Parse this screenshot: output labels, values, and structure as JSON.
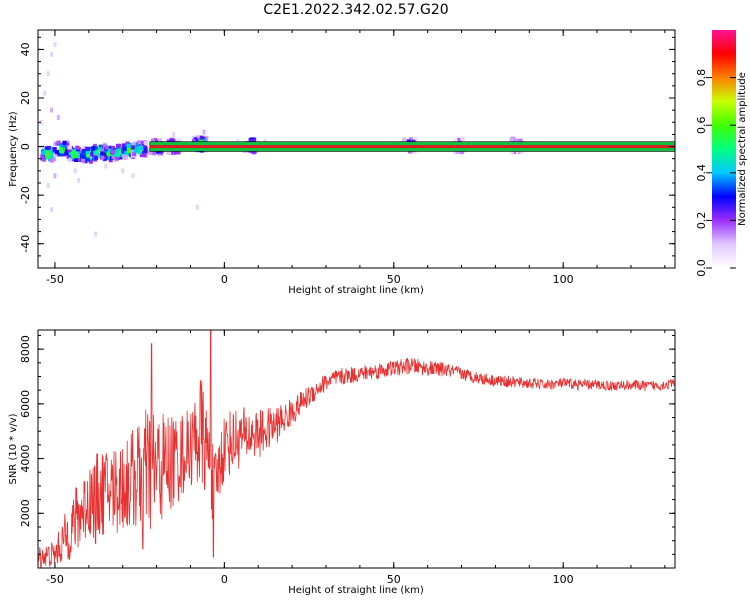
{
  "chart_data": [
    {
      "type": "heatmap",
      "title": "C2E1.2022.342.02.57.G20",
      "xlabel": "Height of straight line (km)",
      "ylabel": "Frequency (Hz)",
      "xlim": [
        -55,
        133
      ],
      "ylim": [
        -50,
        48
      ],
      "xticks": [
        -50,
        0,
        50,
        100
      ],
      "yticks": [
        -40,
        -20,
        0,
        20,
        40
      ],
      "line_band": {
        "center": 0,
        "half_width": 2,
        "color_core": "#d62020",
        "color_edge": "#10c040"
      },
      "colorbar": {
        "label": "Normalized spectral amplitude",
        "ticks": [
          0.0,
          0.2,
          0.4,
          0.6,
          0.8
        ],
        "range": [
          0,
          1
        ],
        "colormap": [
          "#ffffff",
          "#e0c8ff",
          "#9b30ff",
          "#0000ff",
          "#00c8ff",
          "#00ff80",
          "#40ff00",
          "#c8ff00",
          "#ff8000",
          "#ff0000",
          "#ff1493"
        ]
      },
      "blobs": [
        {
          "x": -52,
          "y": -3,
          "a": 0.75
        },
        {
          "x": -48,
          "y": -1,
          "a": 0.7
        },
        {
          "x": -44,
          "y": -3,
          "a": 0.7
        },
        {
          "x": -40,
          "y": -3.5,
          "a": 0.75
        },
        {
          "x": -37,
          "y": -2,
          "a": 0.7
        },
        {
          "x": -34,
          "y": -3,
          "a": 0.7
        },
        {
          "x": -31,
          "y": -2.5,
          "a": 0.65
        },
        {
          "x": -28,
          "y": -1.5,
          "a": 0.7
        },
        {
          "x": -25,
          "y": -1,
          "a": 0.6
        },
        {
          "x": -20,
          "y": 0,
          "a": 0.55
        },
        {
          "x": -15,
          "y": 0,
          "a": 0.5
        },
        {
          "x": -7,
          "y": 1,
          "a": 0.7
        },
        {
          "x": 8,
          "y": 0.5,
          "a": 0.5
        },
        {
          "x": 55,
          "y": 0.5,
          "a": 0.35
        },
        {
          "x": 70,
          "y": 0.5,
          "a": 0.3
        },
        {
          "x": 86,
          "y": 0.5,
          "a": 0.3
        }
      ],
      "scatter_points": [
        {
          "x": -50,
          "y": 42,
          "a": 0.05
        },
        {
          "x": -51,
          "y": 38,
          "a": 0.05
        },
        {
          "x": -52,
          "y": 30,
          "a": 0.05
        },
        {
          "x": -53,
          "y": 22,
          "a": 0.05
        },
        {
          "x": -51,
          "y": 15,
          "a": 0.08
        },
        {
          "x": -49,
          "y": 12,
          "a": 0.08
        },
        {
          "x": -54,
          "y": 10,
          "a": 0.05
        },
        {
          "x": -50,
          "y": -12,
          "a": 0.08
        },
        {
          "x": -52,
          "y": -16,
          "a": 0.05
        },
        {
          "x": -51,
          "y": -26,
          "a": 0.05
        },
        {
          "x": -44,
          "y": -10,
          "a": 0.05
        },
        {
          "x": -43,
          "y": -14,
          "a": 0.05
        },
        {
          "x": -38,
          "y": -36,
          "a": 0.05
        },
        {
          "x": -35,
          "y": -8,
          "a": 0.05
        },
        {
          "x": -30,
          "y": -10,
          "a": 0.05
        },
        {
          "x": -27,
          "y": -12,
          "a": 0.05
        },
        {
          "x": -15,
          "y": 5,
          "a": 0.05
        },
        {
          "x": -8,
          "y": -25,
          "a": 0.05
        },
        {
          "x": -6,
          "y": 6,
          "a": 0.08
        },
        {
          "x": 4,
          "y": 2,
          "a": 0.05
        },
        {
          "x": 12,
          "y": 2,
          "a": 0.05
        }
      ]
    },
    {
      "type": "line",
      "xlabel": "Height of straight line (km)",
      "ylabel": "SNR (10 * v/v)",
      "xlim": [
        -55,
        133
      ],
      "ylim": [
        0,
        8700
      ],
      "xticks": [
        -50,
        0,
        50,
        100
      ],
      "yticks": [
        2000,
        4000,
        6000,
        8000
      ],
      "color": "#e83030",
      "x": [
        -55,
        -50,
        -45,
        -40,
        -35,
        -30,
        -25,
        -22,
        -20,
        -15,
        -10,
        -7,
        -5,
        -3,
        0,
        5,
        10,
        15,
        20,
        25,
        30,
        35,
        40,
        45,
        50,
        55,
        60,
        65,
        70,
        75,
        80,
        85,
        90,
        95,
        100,
        105,
        110,
        115,
        120,
        125,
        130,
        133
      ],
      "y": [
        400,
        500,
        1500,
        2500,
        2800,
        3000,
        3400,
        3600,
        3600,
        3900,
        4400,
        5000,
        4200,
        2800,
        4500,
        4800,
        4900,
        5200,
        5700,
        6300,
        6800,
        7000,
        7100,
        7200,
        7300,
        7400,
        7300,
        7250,
        7100,
        6950,
        6850,
        6800,
        6750,
        6700,
        6750,
        6700,
        6700,
        6650,
        6700,
        6650,
        6700,
        6750
      ],
      "noise": [
        400,
        500,
        1200,
        1500,
        1600,
        1800,
        2000,
        2500,
        2200,
        1800,
        1400,
        2200,
        1600,
        1400,
        1300,
        1100,
        900,
        700,
        500,
        400,
        350,
        320,
        300,
        300,
        300,
        300,
        280,
        260,
        240,
        230,
        220,
        210,
        200,
        200,
        200,
        200,
        190,
        190,
        190,
        190,
        190,
        190
      ],
      "spikes": [
        {
          "x": -21.5,
          "y": 8200
        },
        {
          "x": -4,
          "y": 8700
        },
        {
          "x": -3.2,
          "y": 400
        },
        {
          "x": -24,
          "y": 700
        },
        {
          "x": -38,
          "y": 900
        }
      ]
    }
  ]
}
